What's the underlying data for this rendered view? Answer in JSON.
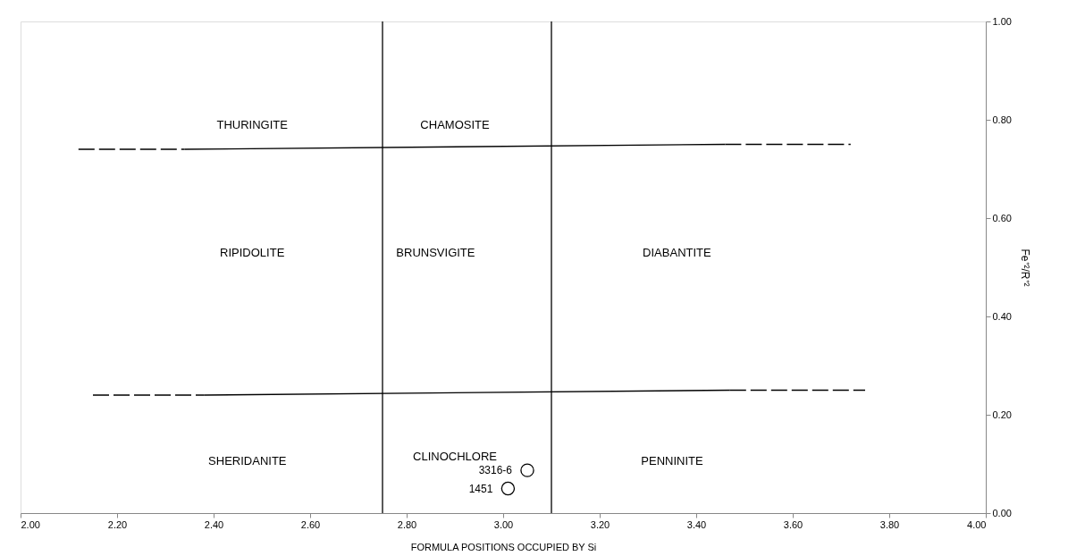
{
  "chart_data": {
    "type": "scatter",
    "xlabel": "FORMULA POSITIONS OCCUPIED BY Si",
    "ylabel": "Fe⁺²/R⁺²",
    "xlim": [
      2.0,
      4.0
    ],
    "xticks": [
      {
        "value": 2.0,
        "label": "2.00"
      },
      {
        "value": 2.2,
        "label": "2.20"
      },
      {
        "value": 2.4,
        "label": "2.40"
      },
      {
        "value": 2.6,
        "label": "2.60"
      },
      {
        "value": 2.8,
        "label": "2.80"
      },
      {
        "value": 3.0,
        "label": "3.00"
      },
      {
        "value": 3.2,
        "label": "3.20"
      },
      {
        "value": 3.4,
        "label": "3.40"
      },
      {
        "value": 3.6,
        "label": "3.60"
      },
      {
        "value": 3.8,
        "label": "3.80"
      },
      {
        "value": 4.0,
        "label": "4.00"
      }
    ],
    "ylim": [
      0.0,
      1.0
    ],
    "yticks": [
      {
        "value": 0.0,
        "label": "0.00"
      },
      {
        "value": 0.2,
        "label": "0.20"
      },
      {
        "value": 0.4,
        "label": "0.40"
      },
      {
        "value": 0.6,
        "label": "0.60"
      },
      {
        "value": 0.8,
        "label": "0.80"
      },
      {
        "value": 1.0,
        "label": "1.00"
      }
    ],
    "grid": false,
    "series": [
      {
        "color": "#000000",
        "marker": "circle",
        "x": [
          3.05,
          3.01
        ],
        "values": [
          0.087,
          0.05
        ]
      },
      {
        "type": "line",
        "color": "#000000",
        "line_style": "dashed",
        "x": [
          2.12,
          2.34
        ],
        "values": [
          0.74,
          0.74
        ]
      },
      {
        "type": "line",
        "color": "#000000",
        "line_style": "solid",
        "x": [
          2.34,
          3.46
        ],
        "values": [
          0.74,
          0.75
        ]
      },
      {
        "type": "line",
        "color": "#000000",
        "line_style": "dashed",
        "x": [
          3.46,
          3.72
        ],
        "values": [
          0.75,
          0.75
        ]
      },
      {
        "type": "line",
        "color": "#000000",
        "line_style": "dashed",
        "x": [
          2.15,
          2.38
        ],
        "values": [
          0.24,
          0.24
        ]
      },
      {
        "type": "line",
        "color": "#000000",
        "line_style": "solid",
        "x": [
          2.38,
          3.47
        ],
        "values": [
          0.24,
          0.25
        ]
      },
      {
        "type": "line",
        "color": "#000000",
        "line_style": "dashed",
        "x": [
          3.47,
          3.75
        ],
        "values": [
          0.25,
          0.25
        ]
      }
    ],
    "ref_lines": [
      {
        "axis": "x",
        "value": 2.75,
        "color": "#000000"
      },
      {
        "axis": "x",
        "value": 3.1,
        "color": "#000000"
      }
    ],
    "annotations": [
      "THURINGITE",
      "CHAMOSITE",
      "RIPIDOLITE",
      "BRUNSVIGITE",
      "DIABANTITE",
      "SHERIDANITE",
      "CLINOCHLORE",
      "PENNINITE",
      "3316-6",
      "1451"
    ]
  }
}
